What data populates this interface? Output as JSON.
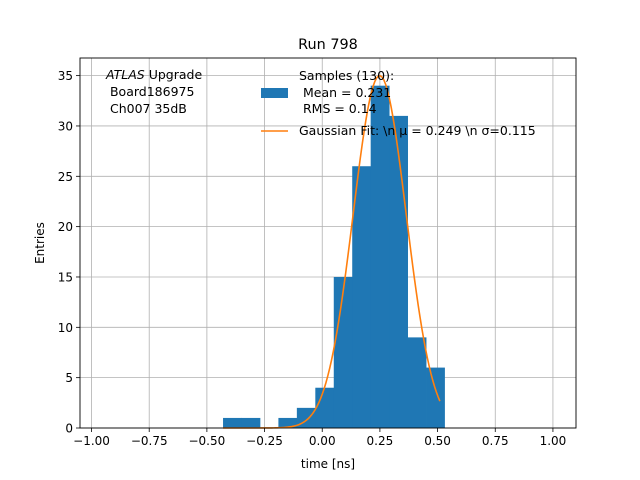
{
  "chart_data": {
    "type": "bar",
    "title": "Run 798",
    "xlabel": "time [ns]",
    "ylabel": "Entries",
    "xlim": [
      -1.05,
      1.1
    ],
    "ylim": [
      0,
      36.75
    ],
    "xticks": [
      "−1.00",
      "−0.75",
      "−0.50",
      "−0.25",
      "0.00",
      "0.25",
      "0.50",
      "0.75",
      "1.00"
    ],
    "xtick_values": [
      -1.0,
      -0.75,
      -0.5,
      -0.25,
      0.0,
      0.25,
      0.5,
      0.75,
      1.0
    ],
    "yticks": [
      "0",
      "5",
      "10",
      "15",
      "20",
      "25",
      "30",
      "35"
    ],
    "ytick_values": [
      0,
      5,
      10,
      15,
      20,
      25,
      30,
      35
    ],
    "grid": true,
    "bar_color": "#1f77b4",
    "line_color": "#ff7f0e",
    "histogram": {
      "bin_edges": [
        -0.43,
        -0.35,
        -0.27,
        -0.19,
        -0.11,
        -0.03,
        0.05,
        0.13,
        0.21,
        0.29,
        0.37,
        0.45,
        0.53
      ],
      "counts": [
        1,
        1,
        0,
        1,
        2,
        4,
        15,
        26,
        34,
        31,
        9,
        6
      ]
    },
    "gaussian_fit": {
      "mu": 0.249,
      "sigma": 0.115,
      "amplitude": 35,
      "x_range": [
        -0.43,
        0.51
      ]
    },
    "annotation": {
      "atlas_word": "ATLAS",
      "line1_rest": " Upgrade",
      "line2": " Board186975",
      "line3": " Ch007 35dB"
    },
    "legend": {
      "placement": "upper-center",
      "hist_label_lines": [
        "Samples (130):",
        " Mean = 0.231",
        " RMS = 0.14"
      ],
      "fit_label": "Gaussian Fit: \\n μ = 0.249 \\n σ=0.115"
    }
  }
}
